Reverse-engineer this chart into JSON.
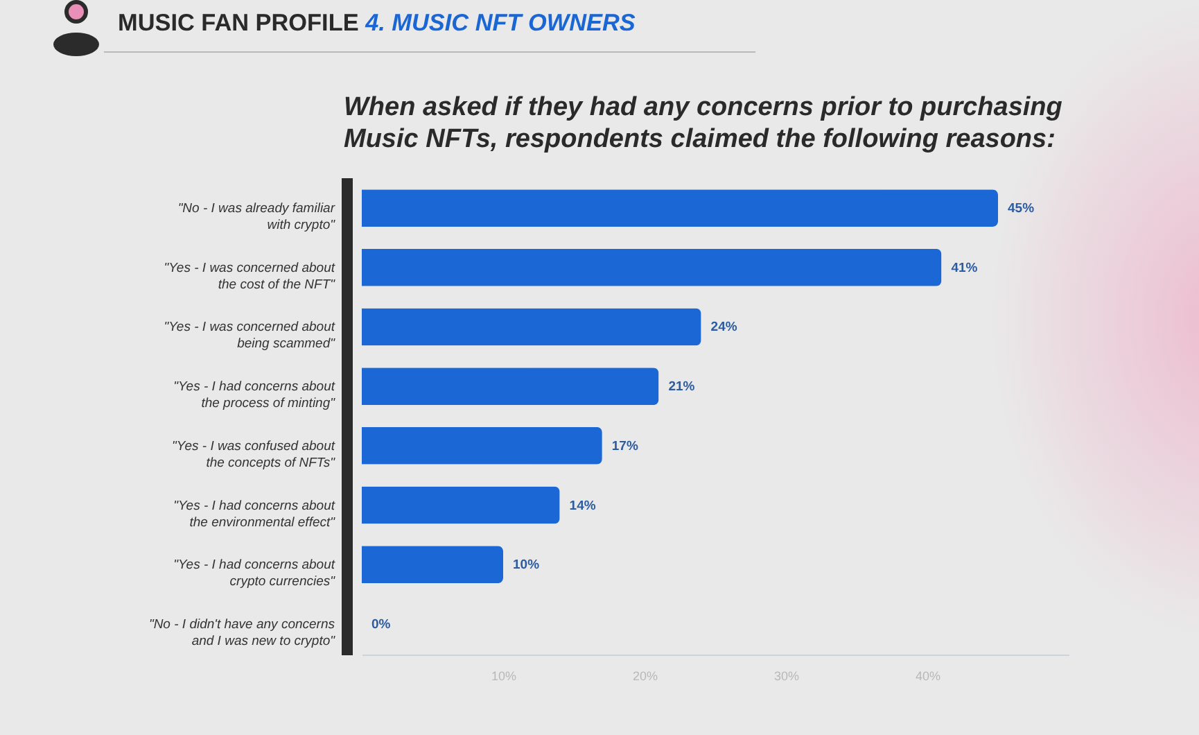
{
  "chart_data": {
    "type": "bar",
    "orientation": "horizontal",
    "title": "MUSIC FAN PROFILE 4. MUSIC NFT OWNERS",
    "subtitle": "When asked if they had any concerns prior to purchasing Music NFTs, respondents claimed the following reasons:",
    "categories": [
      "\"No - I was already familiar with crypto\"",
      "\"Yes - I was concerned about the cost of the NFT\"",
      "\"Yes - I was concerned about being scammed\"",
      "\"Yes - I had concerns about the process of minting\"",
      "\"Yes - I was confused about the concepts of NFTs\"",
      "\"Yes - I had concerns about the environmental effect\"",
      "\"Yes - I had concerns about crypto currencies\"",
      "\"No - I didn't have any concerns and I was new to crypto\""
    ],
    "values": [
      45,
      41,
      24,
      21,
      17,
      14,
      10,
      0
    ],
    "value_labels": [
      "45%",
      "41%",
      "24%",
      "21%",
      "17%",
      "14%",
      "10%",
      "0%"
    ],
    "color": "#1b67d5",
    "xlim": [
      0,
      50
    ],
    "xticks": [
      {
        "value": 10,
        "label": "10%"
      },
      {
        "value": 20,
        "label": "20%"
      },
      {
        "value": 30,
        "label": "30%"
      },
      {
        "value": 40,
        "label": "40%"
      }
    ]
  }
}
